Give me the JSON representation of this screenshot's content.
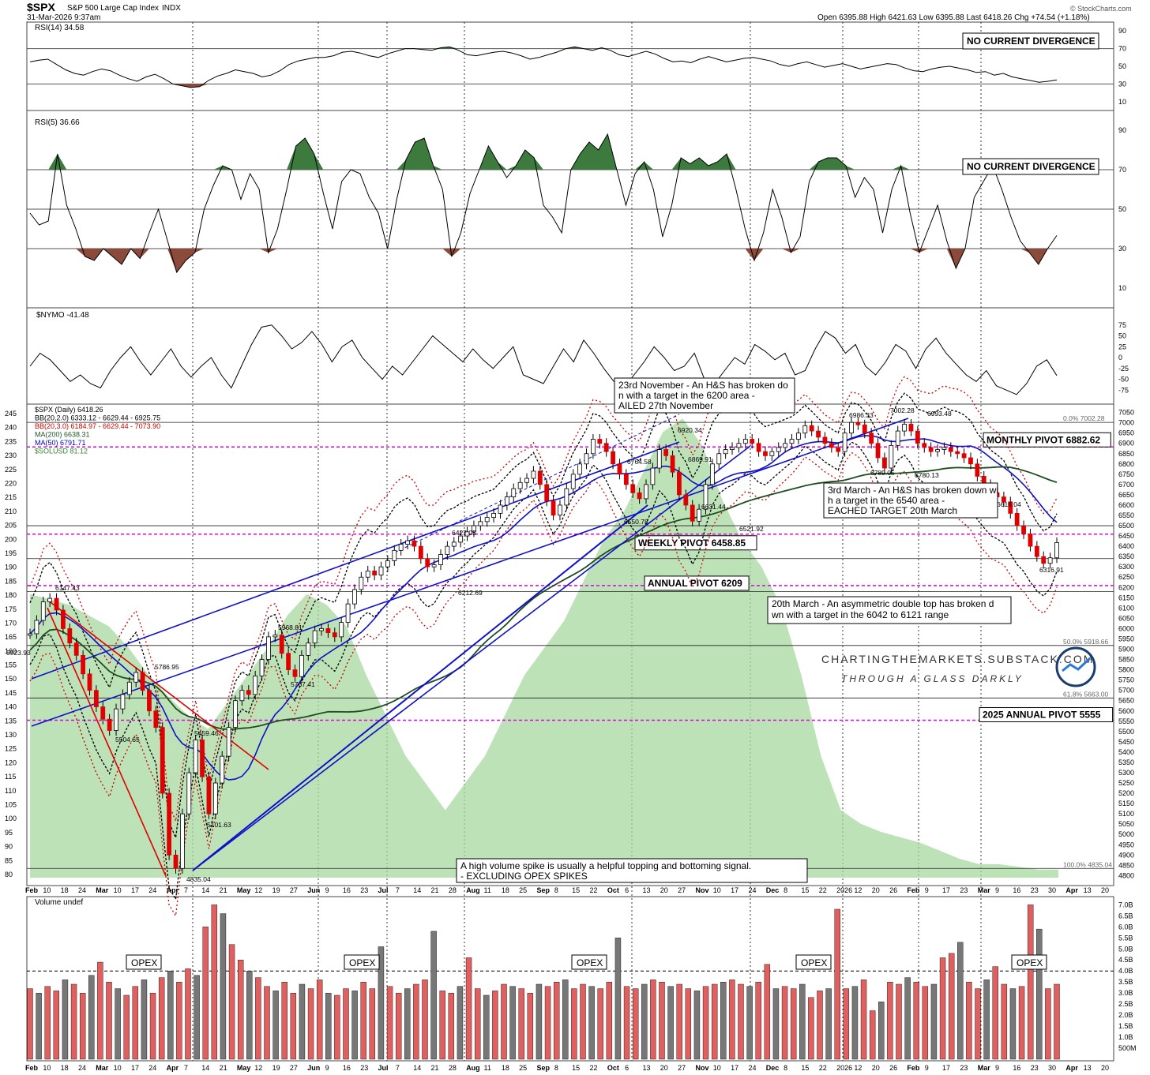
{
  "header": {
    "symbol": "$SPX",
    "name": "S&P 500 Large Cap Index",
    "exchange": "INDX",
    "date": "31-Mar-2026 9:37am",
    "ohlc": "Open 6395.88  High 6421.63  Low 6395.88  Last 6418.26  Chg +74.54 (+1.18%)",
    "brand": "© StockCharts.com"
  },
  "panels": {
    "rsi14": {
      "label": "RSI(14) 34.58",
      "note": "NO CURRENT DIVERGENCE",
      "ticks": [
        "90",
        "70",
        "50",
        "30",
        "10"
      ]
    },
    "rsi5": {
      "label": "RSI(5) 36.66",
      "note": "NO CURRENT DIVERGENCE",
      "ticks": [
        "90",
        "70",
        "50",
        "30",
        "10"
      ]
    },
    "nymo": {
      "label": "$NYMO -41.48",
      "ticks": [
        "75",
        "50",
        "25",
        "0",
        "-25",
        "-50",
        "-75"
      ]
    },
    "volume": {
      "label": "Volume undef",
      "ticks": [
        "7.0B",
        "6.5B",
        "6.0B",
        "5.5B",
        "5.0B",
        "4.5B",
        "4.0B",
        "3.5B",
        "3.0B",
        "2.5B",
        "2.0B",
        "1.5B",
        "1.0B",
        "500M"
      ],
      "opex_label": "OPEX"
    }
  },
  "price": {
    "legend": [
      {
        "text": "$SPX (Daily) 6418.26",
        "color": "#000000"
      },
      {
        "text": "BB(20,2.0) 6333.12 - 6629.44 - 6925.75",
        "color": "#000000"
      },
      {
        "text": "BB(20,3.0) 6184.97 - 6629.44 - 7073.90",
        "color": "#cc0000"
      },
      {
        "text": "MA(200) 6638.31",
        "color": "#1e5a1e"
      },
      {
        "text": "MA(50) 6791.71",
        "color": "#0000cc"
      },
      {
        "text": "$SOLUSD 81.12",
        "color": "#2e8b2e"
      }
    ],
    "left_ticks": [
      "245",
      "240",
      "235",
      "230",
      "225",
      "220",
      "215",
      "210",
      "205",
      "200",
      "195",
      "190",
      "185",
      "180",
      "175",
      "170",
      "165",
      "160",
      "155",
      "150",
      "145",
      "140",
      "135",
      "130",
      "125",
      "120",
      "115",
      "110",
      "105",
      "100",
      "95",
      "90",
      "85",
      "80"
    ],
    "right_ticks": [
      "7050",
      "7000",
      "6950",
      "6900",
      "6850",
      "6800",
      "6750",
      "6700",
      "6650",
      "6600",
      "6550",
      "6500",
      "6450",
      "6400",
      "6350",
      "6300",
      "6250",
      "6200",
      "6150",
      "6100",
      "6050",
      "6000",
      "5950",
      "5900",
      "5850",
      "5800",
      "5750",
      "5700",
      "5650",
      "5600",
      "5550",
      "5500",
      "5450",
      "5400",
      "5350",
      "5300",
      "5250",
      "5200",
      "5150",
      "5100",
      "5050",
      "5000",
      "4950",
      "4900",
      "4850",
      "4800"
    ],
    "pivots": [
      {
        "label": "MONTHLY PIVOT 6882.62",
        "value": 6882.62
      },
      {
        "label": "WEEKLY PIVOT 6458.85",
        "value": 6458.85
      },
      {
        "label": "ANNUAL PIVOT 6209",
        "value": 6209
      },
      {
        "label": "2025 ANNUAL PIVOT 5555",
        "value": 5555
      }
    ],
    "fib_labels": [
      "0.0% 7002.28",
      "50.0% 5918.66",
      "61.8% 5663.00",
      "100.0% 4835.04"
    ],
    "point_labels": [
      "6147.43",
      "5923.93",
      "5786.95",
      "5504.65",
      "5459.46",
      "5101.63",
      "4835.04",
      "5968.81",
      "5767.41",
      "6427.05",
      "6212.69",
      "6764.58",
      "6550.78",
      "6920.34",
      "6869.91",
      "6631.44",
      "6521.92",
      "6986.33",
      "7002.28",
      "6993.48",
      "6789.05",
      "6780.13",
      "6616.04",
      "6316.91"
    ],
    "annotations": [
      "23rd November - An H&S has broken down with a target in the 6200 area - FAILED 27th November",
      "3rd March - An H&S has broken down with a target in the 6540 area - REACHED TARGET 20th March",
      "20th March - An asymmetric double top has broken down with a target in the 6042 to 6121 range",
      "A high volume spike is usually a helpful topping and bottoming signal. - EXCLUDING OPEX SPIKES"
    ],
    "watermark": [
      "CHARTINGTHEMARKETS.SUBSTACK.COM",
      "THROUGH A GLASS DARKLY"
    ]
  },
  "x_axis": [
    "Feb",
    "10",
    "18",
    "24",
    "Mar",
    "10",
    "17",
    "24",
    "Apr",
    "7",
    "14",
    "21",
    "May",
    "12",
    "19",
    "27",
    "Jun",
    "9",
    "16",
    "23",
    "Jul",
    "7",
    "14",
    "21",
    "28",
    "Aug",
    "11",
    "18",
    "25",
    "Sep",
    "8",
    "15",
    "22",
    "Oct",
    "6",
    "13",
    "20",
    "27",
    "Nov",
    "10",
    "17",
    "24",
    "Dec",
    "8",
    "15",
    "22",
    "2026",
    "12",
    "20",
    "26",
    "Feb",
    "9",
    "17",
    "23",
    "Mar",
    "9",
    "16",
    "23",
    "30",
    "Apr",
    "13",
    "20"
  ],
  "chart_data": {
    "type": "candlestick",
    "title": "$SPX S&P 500 Large Cap Index INDX",
    "series": [
      {
        "name": "$SPX (Daily)",
        "y": [
          5975,
          6040,
          6130,
          6147,
          6090,
          6000,
          5930,
          5870,
          5780,
          5700,
          5620,
          5560,
          5505,
          5610,
          5680,
          5740,
          5787,
          5700,
          5600,
          5520,
          5200,
          4900,
          4835,
          5100,
          5300,
          5459,
          5280,
          5100,
          5250,
          5380,
          5520,
          5650,
          5700,
          5680,
          5770,
          5850,
          5960,
          5969,
          5880,
          5800,
          5767,
          5870,
          5930,
          5990,
          6000,
          5980,
          5960,
          6030,
          6120,
          6190,
          6250,
          6280,
          6260,
          6300,
          6330,
          6380,
          6410,
          6427,
          6400,
          6340,
          6300,
          6310,
          6360,
          6400,
          6420,
          6450,
          6470,
          6500,
          6520,
          6540,
          6560,
          6600,
          6640,
          6680,
          6710,
          6730,
          6765,
          6700,
          6620,
          6551,
          6600,
          6680,
          6750,
          6800,
          6850,
          6920,
          6900,
          6860,
          6800,
          6750,
          6700,
          6660,
          6631,
          6700,
          6780,
          6870,
          6840,
          6760,
          6650,
          6600,
          6522,
          6580,
          6700,
          6800,
          6850,
          6870,
          6880,
          6900,
          6920,
          6900,
          6860,
          6840,
          6860,
          6880,
          6900,
          6920,
          6950,
          6986,
          6960,
          6930,
          6900,
          6880,
          6860,
          6950,
          7002,
          6990,
          6950,
          6900,
          6830,
          6780,
          6890,
          6960,
          6993,
          6960,
          6900,
          6880,
          6860,
          6870,
          6880,
          6860,
          6850,
          6830,
          6800,
          6740,
          6700,
          6660,
          6640,
          6616,
          6560,
          6500,
          6460,
          6400,
          6350,
          6317,
          6344,
          6418
        ]
      },
      {
        "name": "RSI(14)",
        "y": [
          55,
          57,
          58,
          52,
          46,
          42,
          40,
          44,
          47,
          45,
          40,
          36,
          33,
          38,
          41,
          36,
          30,
          28,
          26,
          27,
          34,
          39,
          42,
          46,
          44,
          42,
          38,
          40,
          45,
          52,
          56,
          58,
          60,
          60,
          62,
          66,
          67,
          65,
          62,
          60,
          64,
          67,
          70,
          70,
          69,
          68,
          71,
          72,
          68,
          63,
          62,
          64,
          66,
          67,
          65,
          62,
          58,
          60,
          63,
          66,
          70,
          72,
          70,
          68,
          71,
          68,
          63,
          61,
          64,
          67,
          64,
          59,
          55,
          56,
          54,
          58,
          61,
          58,
          55,
          57,
          59,
          60,
          58,
          56,
          52,
          50,
          53,
          55,
          52,
          49,
          51,
          53,
          50,
          47,
          49,
          51,
          53,
          52,
          48,
          45,
          44,
          47,
          49,
          50,
          48,
          46,
          43,
          44,
          40,
          42,
          38,
          36,
          34,
          32,
          33,
          34.58
        ]
      },
      {
        "name": "RSI(5)",
        "y": [
          48,
          42,
          44,
          78,
          52,
          40,
          26,
          24,
          30,
          26,
          22,
          30,
          25,
          38,
          50,
          34,
          18,
          24,
          28,
          50,
          62,
          72,
          70,
          55,
          68,
          60,
          28,
          40,
          60,
          82,
          86,
          78,
          58,
          40,
          64,
          70,
          68,
          56,
          48,
          30,
          55,
          75,
          84,
          86,
          72,
          60,
          26,
          38,
          58,
          70,
          82,
          74,
          66,
          72,
          80,
          76,
          52,
          46,
          38,
          70,
          78,
          84,
          80,
          88,
          70,
          52,
          68,
          74,
          60,
          36,
          52,
          76,
          73,
          76,
          72,
          74,
          78,
          60,
          40,
          24,
          38,
          60,
          46,
          28,
          36,
          64,
          74,
          76,
          76,
          72,
          56,
          66,
          60,
          38,
          60,
          72,
          48,
          28,
          40,
          52,
          34,
          20,
          30,
          56,
          64,
          72,
          60,
          46,
          34,
          28,
          22,
          30,
          36.66
        ]
      },
      {
        "name": "$NYMO",
        "y": [
          -20,
          10,
          -5,
          -30,
          -55,
          -40,
          -60,
          -70,
          -30,
          0,
          25,
          -10,
          -40,
          -10,
          20,
          -20,
          -45,
          -20,
          0,
          -40,
          -70,
          -20,
          30,
          70,
          75,
          50,
          20,
          35,
          60,
          30,
          -10,
          25,
          40,
          0,
          -25,
          -50,
          -20,
          -40,
          -10,
          20,
          50,
          30,
          10,
          -10,
          20,
          -5,
          -25,
          0,
          25,
          -40,
          -50,
          -60,
          -20,
          20,
          -10,
          40,
          10,
          -25,
          -55,
          -70,
          -40,
          -10,
          25,
          0,
          -30,
          -20,
          10,
          -50,
          -60,
          -30,
          0,
          -15,
          30,
          15,
          -5,
          10,
          -40,
          -30,
          20,
          60,
          45,
          10,
          30,
          -20,
          -40,
          -10,
          30,
          15,
          -25,
          20,
          45,
          10,
          -15,
          -40,
          -55,
          -30,
          -65,
          -75,
          -85,
          -60,
          -20,
          -5,
          -41.48
        ]
      },
      {
        "name": "Volume",
        "y": [
          3.2,
          3.0,
          3.3,
          3.1,
          3.6,
          3.4,
          3.0,
          3.8,
          4.4,
          3.5,
          3.2,
          2.9,
          3.3,
          3.6,
          3.0,
          3.7,
          4.0,
          3.5,
          4.1,
          3.8,
          6.0,
          7.0,
          6.6,
          5.2,
          4.5,
          4.0,
          3.7,
          3.3,
          3.1,
          3.5,
          3.0,
          3.4,
          3.2,
          3.6,
          3.0,
          2.9,
          3.2,
          3.1,
          3.5,
          3.2,
          5.1,
          3.3,
          3.0,
          3.2,
          3.4,
          3.6,
          5.8,
          3.1,
          3.0,
          3.3,
          4.6,
          3.2,
          2.9,
          3.1,
          3.4,
          3.3,
          3.2,
          3.0,
          3.4,
          3.3,
          3.5,
          3.6,
          3.2,
          3.4,
          3.3,
          3.2,
          3.5,
          5.5,
          3.3,
          3.2,
          3.4,
          3.6,
          3.5,
          3.3,
          3.4,
          3.2,
          3.1,
          3.3,
          3.4,
          3.5,
          3.6,
          3.4,
          3.3,
          3.5,
          4.3,
          3.2,
          3.3,
          3.2,
          3.4,
          2.8,
          3.1,
          3.2,
          6.8,
          3.2,
          3.3,
          3.6,
          2.2,
          2.6,
          3.5,
          3.4,
          3.7,
          3.5,
          3.3,
          3.4,
          4.6,
          4.8,
          5.3,
          3.5,
          3.2,
          3.6,
          4.2,
          3.4,
          3.2,
          3.3,
          7.0,
          5.9,
          3.2,
          3.4
        ]
      }
    ],
    "ylabel_right": "",
    "ylabel_left": ""
  }
}
